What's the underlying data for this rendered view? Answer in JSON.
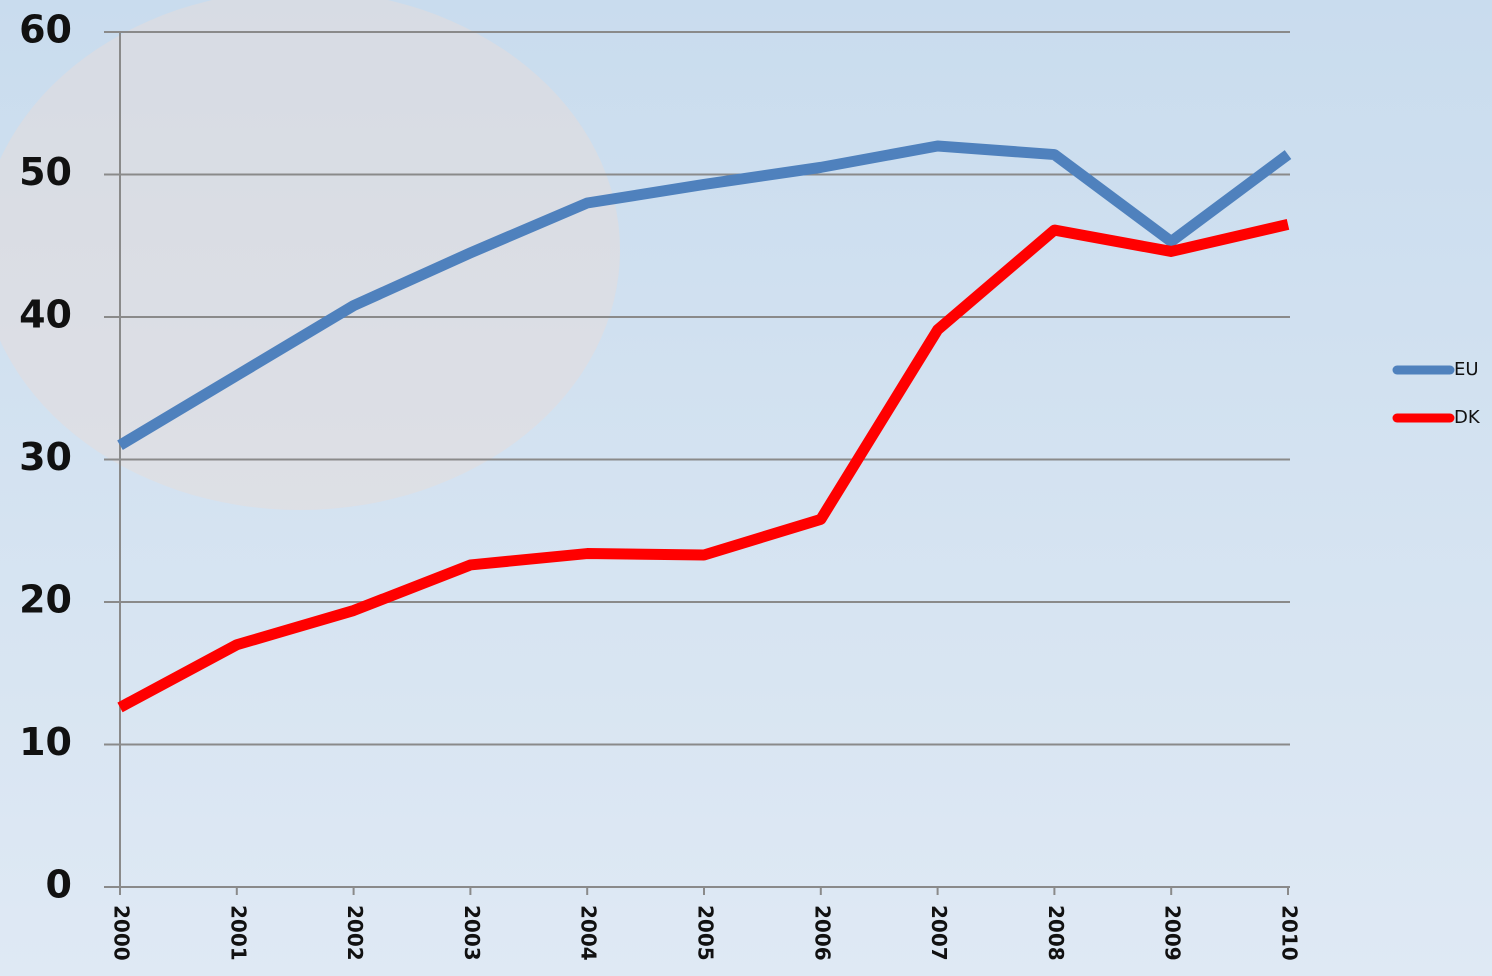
{
  "chart_data": {
    "type": "line",
    "categories": [
      "2000",
      "2001",
      "2002",
      "2003",
      "2004",
      "2005",
      "2006",
      "2007",
      "2008",
      "2009",
      "2010"
    ],
    "series": [
      {
        "name": "EU",
        "color": "#4f81bd",
        "values": [
          31,
          35.9,
          40.8,
          44.5,
          48,
          49.3,
          50.5,
          52,
          51.4,
          45.3,
          51.4
        ]
      },
      {
        "name": "DK",
        "color": "#ff0000",
        "values": [
          12.6,
          17,
          19.4,
          22.6,
          23.4,
          23.3,
          25.8,
          39.1,
          46.1,
          44.6,
          46.5
        ]
      }
    ],
    "ylim": [
      0,
      60
    ],
    "yticks": [
      0,
      10,
      20,
      30,
      40,
      50,
      60
    ],
    "grid": true,
    "legend": "right"
  }
}
